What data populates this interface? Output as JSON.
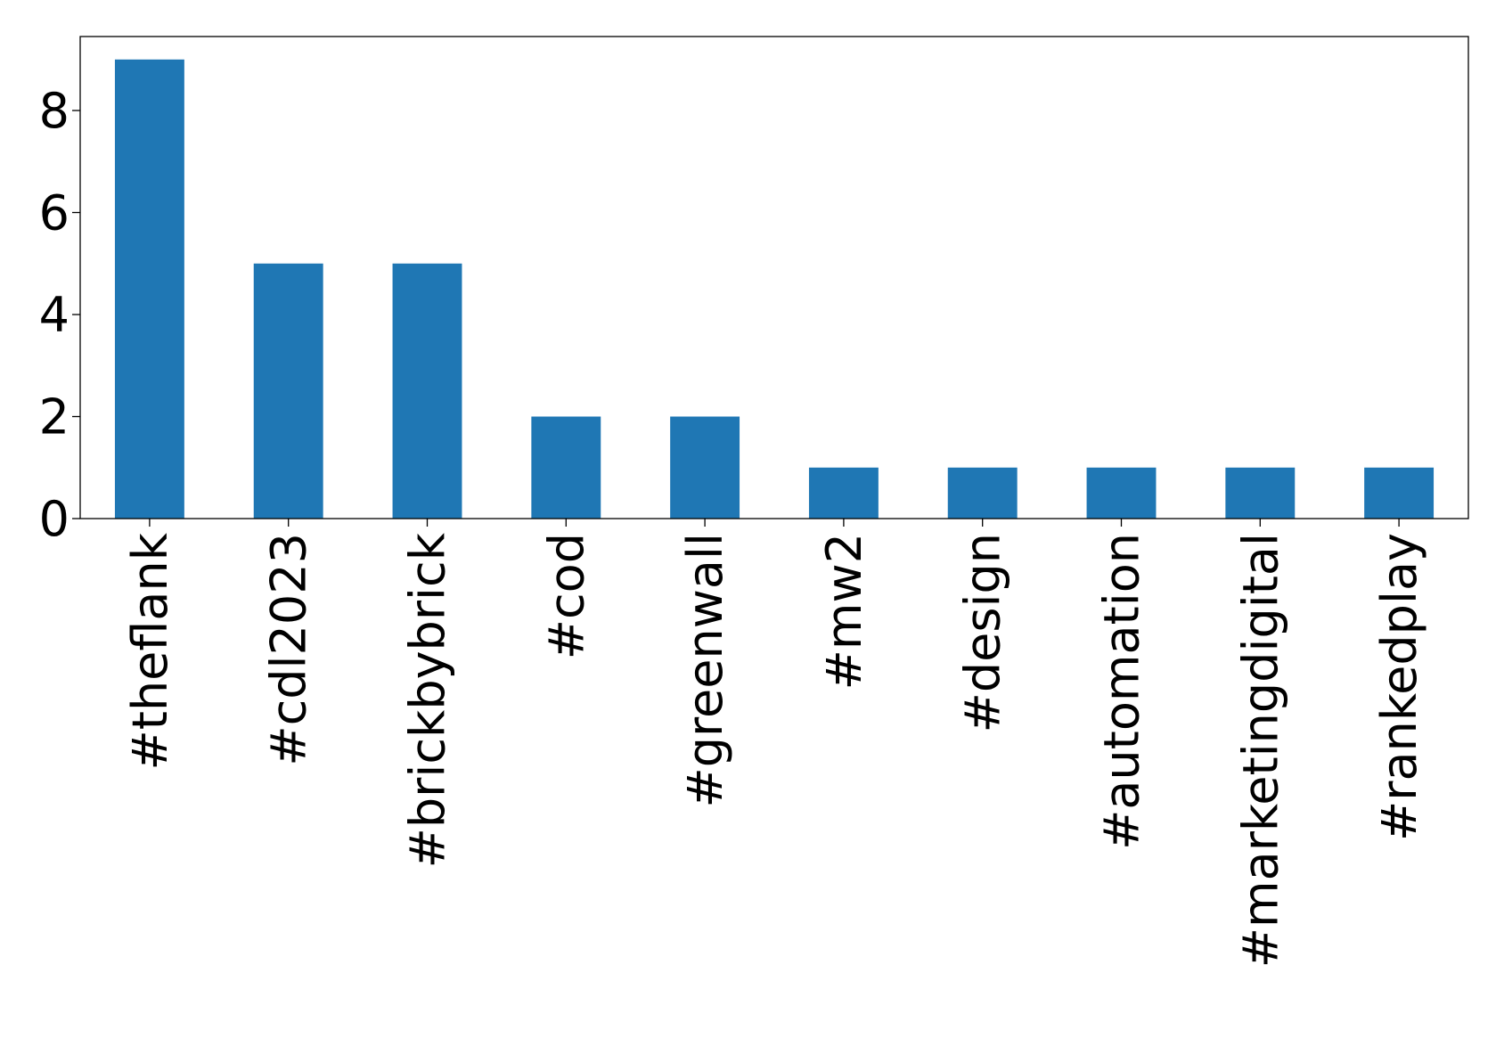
{
  "chart_data": {
    "type": "bar",
    "title": "",
    "xlabel": "",
    "ylabel": "",
    "categories": [
      "#theflank",
      "#cdl2023",
      "#brickbybrick",
      "#cod",
      "#greenwall",
      "#mw2",
      "#design",
      "#automation",
      "#marketingdigital",
      "#rankedplay"
    ],
    "values": [
      9,
      5,
      5,
      2,
      2,
      1,
      1,
      1,
      1,
      1
    ],
    "ylim": [
      0,
      9.45
    ],
    "yticks": [
      0,
      2,
      4,
      6,
      8
    ],
    "grid": false,
    "legend": "none",
    "bar_color": "#1f77b4"
  }
}
